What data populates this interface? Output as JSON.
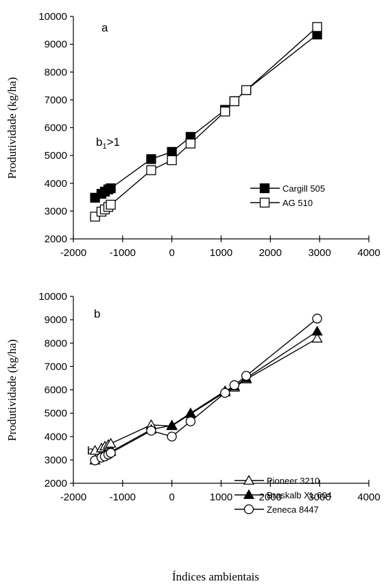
{
  "chart_data": [
    {
      "type": "line",
      "panel_label": "a",
      "annotation": {
        "main": "b",
        "sub": "1",
        "rest": ">1"
      },
      "ylabel": "Produtividade (kg/ha)",
      "xlabel": "",
      "xlim": [
        -2000,
        4000
      ],
      "ylim": [
        2000,
        10000
      ],
      "x_ticks": [
        -2000,
        -1000,
        0,
        1000,
        2000,
        3000,
        4000
      ],
      "x_tick_labels": [
        "-2000",
        "-1000",
        "0",
        "1000",
        "2000",
        "3000",
        "4000"
      ],
      "y_ticks": [
        2000,
        3000,
        4000,
        5000,
        6000,
        7000,
        8000,
        9000,
        10000
      ],
      "y_tick_labels": [
        "2000",
        "3000",
        "4000",
        "5000",
        "6000",
        "7000",
        "8000",
        "9000",
        "10000"
      ],
      "grid": false,
      "legend_position": "right",
      "series": [
        {
          "name": "Cargill 505",
          "marker": "square-filled",
          "x": [
            -1560,
            -1430,
            -1360,
            -1290,
            -1240,
            -420,
            0,
            380,
            1080,
            1270,
            1510,
            2950
          ],
          "y": [
            3480,
            3620,
            3700,
            3780,
            3820,
            4870,
            5130,
            5670,
            6640,
            6950,
            7350,
            9350
          ]
        },
        {
          "name": "AG 510",
          "marker": "square-open",
          "x": [
            -1560,
            -1430,
            -1360,
            -1290,
            -1240,
            -420,
            0,
            380,
            1080,
            1270,
            1510,
            2950
          ],
          "y": [
            2800,
            2980,
            3060,
            3150,
            3230,
            4470,
            4830,
            5430,
            6580,
            6950,
            7350,
            9620
          ]
        }
      ]
    },
    {
      "type": "line",
      "panel_label": "b",
      "annotation": {
        "main": "b",
        "sub": "1",
        "rest": "=1"
      },
      "ylabel": "Produtividade (kg/ha)",
      "xlabel": "Índices ambientais",
      "xlim": [
        -2000,
        4000
      ],
      "ylim": [
        2000,
        10000
      ],
      "x_ticks": [
        -2000,
        -1000,
        0,
        1000,
        2000,
        3000,
        4000
      ],
      "x_tick_labels": [
        "-2000",
        "-1000",
        "0",
        "1000",
        "2000",
        "3000",
        "4000"
      ],
      "y_ticks": [
        2000,
        3000,
        4000,
        5000,
        6000,
        7000,
        8000,
        9000,
        10000
      ],
      "y_tick_labels": [
        "2000",
        "3000",
        "4000",
        "5000",
        "6000",
        "7000",
        "8000",
        "9000",
        "10000"
      ],
      "grid": false,
      "legend_position": "right",
      "series": [
        {
          "name": "Pioneer 3210",
          "marker": "triangle-open",
          "x": [
            -1560,
            -1430,
            -1360,
            -1290,
            -1240,
            -420,
            0,
            380,
            1080,
            1270,
            1510,
            2950
          ],
          "y": [
            3400,
            3500,
            3580,
            3650,
            3700,
            4500,
            4450,
            4970,
            5900,
            6100,
            6450,
            8200
          ]
        },
        {
          "name": "Braskalb XL 604",
          "marker": "triangle-filled",
          "x": [
            -1560,
            -1430,
            -1360,
            -1290,
            -1240,
            -420,
            0,
            380,
            1080,
            1270,
            1510,
            2950
          ],
          "y": [
            2980,
            3120,
            3250,
            3300,
            3350,
            4300,
            4480,
            5000,
            5950,
            6150,
            6500,
            8500
          ]
        },
        {
          "name": "Zeneca 8447",
          "marker": "circle-open",
          "x": [
            -1560,
            -1430,
            -1360,
            -1290,
            -1240,
            -420,
            0,
            380,
            1080,
            1270,
            1510,
            2950
          ],
          "y": [
            2980,
            3100,
            3150,
            3230,
            3300,
            4250,
            4000,
            4650,
            5870,
            6200,
            6600,
            9050
          ]
        }
      ]
    }
  ]
}
